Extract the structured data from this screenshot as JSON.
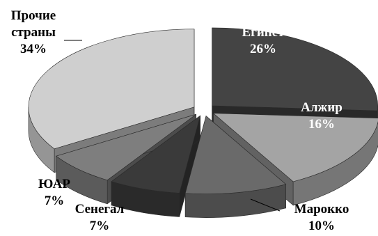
{
  "chart_data": {
    "type": "pie",
    "style": "3d-exploded",
    "title": "",
    "legend": "none",
    "slices": [
      {
        "label_lines": [
          "Египет"
        ],
        "value": 26,
        "value_text": "26%",
        "color": "#444444"
      },
      {
        "label_lines": [
          "Алжир"
        ],
        "value": 16,
        "value_text": "16%",
        "color": "#a4a4a4"
      },
      {
        "label_lines": [
          "Марокко"
        ],
        "value": 10,
        "value_text": "10%",
        "color": "#6a6a6a"
      },
      {
        "label_lines": [
          "Сенегал"
        ],
        "value": 7,
        "value_text": "7%",
        "color": "#3a3a3a"
      },
      {
        "label_lines": [
          "ЮАР"
        ],
        "value": 7,
        "value_text": "7%",
        "color": "#7e7e7e"
      },
      {
        "label_lines": [
          "Прочие",
          "страны"
        ],
        "value": 34,
        "value_text": "34%",
        "color": "#cfcfcf"
      }
    ]
  }
}
